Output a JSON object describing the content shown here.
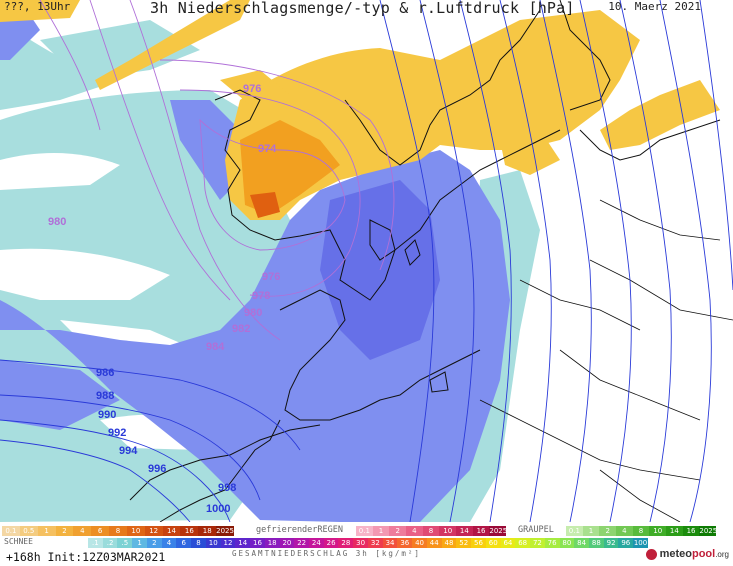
{
  "header": {
    "left": "???, 13Uhr",
    "title": "3h Niederschlagsmenge/-typ & r.Luftdruck [hPa]",
    "date": "10. Maerz 2021"
  },
  "isobars": [
    {
      "value": "976",
      "color": "#b070d8"
    },
    {
      "value": "974",
      "color": "#b070d8"
    },
    {
      "value": "980",
      "color": "#b070d8"
    },
    {
      "value": "976",
      "color": "#b070d8"
    },
    {
      "value": "978",
      "color": "#b070d8"
    },
    {
      "value": "980",
      "color": "#b070d8"
    },
    {
      "value": "982",
      "color": "#b070d8"
    },
    {
      "value": "984",
      "color": "#b070d8"
    },
    {
      "value": "986",
      "color": "#2a3ad8"
    },
    {
      "value": "988",
      "color": "#2a3ad8"
    },
    {
      "value": "990",
      "color": "#2a3ad8"
    },
    {
      "value": "992",
      "color": "#2a3ad8"
    },
    {
      "value": "994",
      "color": "#2a3ad8"
    },
    {
      "value": "996",
      "color": "#2a3ad8"
    },
    {
      "value": "998",
      "color": "#2a3ad8"
    },
    {
      "value": "1000",
      "color": "#2a3ad8"
    }
  ],
  "legend": {
    "snow_caption": "SCHNEE",
    "snow_values": [
      "0.1",
      "0.5",
      "1",
      "2",
      "4",
      "6",
      "8",
      "10",
      "12",
      "14",
      "16",
      "18",
      "2025+"
    ],
    "freezing_caption": "gefrierenderREGEN",
    "freezing_values": [
      "0.1",
      "1",
      "2",
      "4",
      "8",
      "10",
      "14",
      "16",
      "2025+"
    ],
    "graupel_caption": "GRAUPEL",
    "graupel_values": [
      "0.1",
      "1",
      "2",
      "4",
      "8",
      "10",
      "14",
      "16",
      "2025+"
    ],
    "total_values": [
      ".1",
      ".2",
      ".5",
      "1",
      "2",
      "4",
      "6",
      "8",
      "10",
      "12",
      "14",
      "16",
      "18",
      "20",
      "22",
      "24",
      "26",
      "28",
      "30",
      "32",
      "34",
      "36",
      "40",
      "44",
      "48",
      "52",
      "56",
      "60",
      "64",
      "68",
      "72",
      "76",
      "80",
      "84",
      "88",
      "92",
      "96",
      "100"
    ],
    "total_caption": "GESAMTNIEDERSCHLAG 3h [kg/m²]"
  },
  "footer": {
    "run_info": "+168h Init:12Z03MAR2021",
    "logo_main": "meteo",
    "logo_accent": "pool",
    "logo_suffix": ".org"
  },
  "colors": {
    "sea": "#ffffff",
    "precip_light": "#a8dede",
    "precip_blue": "#7f8ff0",
    "precip_blue_dark": "#6670e8",
    "snow_yellow": "#f6c744",
    "snow_orange": "#f2a020",
    "snow_red": "#e06010",
    "coast": "#111111",
    "isobar_low": "#b070d8",
    "isobar_high": "#2a3ad8"
  }
}
